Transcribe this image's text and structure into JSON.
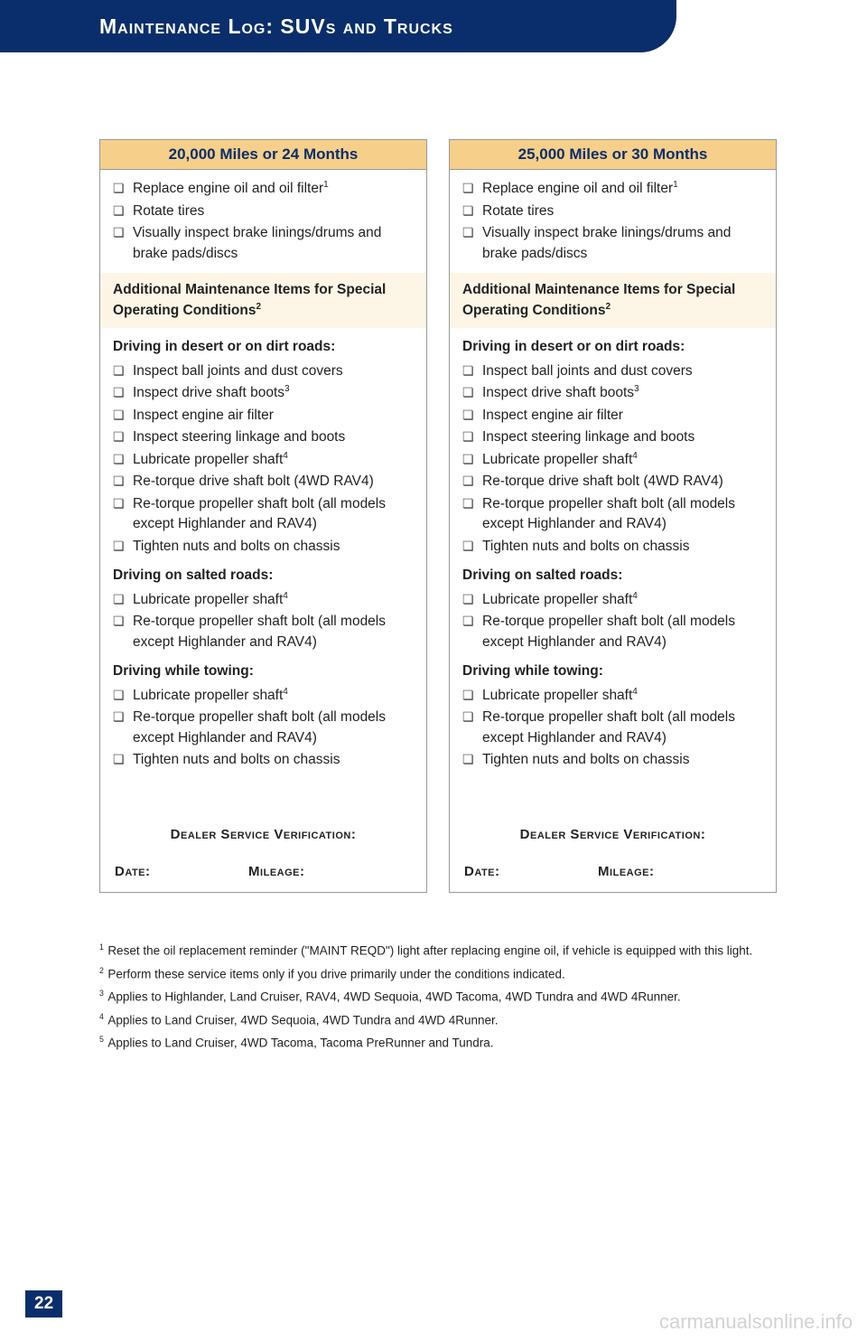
{
  "header_title": "Maintenance Log: SUVs and Trucks",
  "panels": [
    {
      "title": "20,000 Miles or 24 Months",
      "main_items": [
        {
          "text": "Replace engine oil and oil filter",
          "sup": "1"
        },
        {
          "text": "Rotate tires"
        },
        {
          "text": "Visually inspect brake linings/drums and brake pads/discs"
        }
      ],
      "special_heading": "Additional Maintenance Items for Special Operating Conditions",
      "special_sup": "2",
      "sections": [
        {
          "heading": "Driving in desert or on dirt roads:",
          "items": [
            {
              "text": "Inspect ball joints and dust covers"
            },
            {
              "text": "Inspect drive shaft boots",
              "sup": "3"
            },
            {
              "text": "Inspect engine air filter"
            },
            {
              "text": "Inspect steering linkage and boots"
            },
            {
              "text": "Lubricate propeller shaft",
              "sup": "4"
            },
            {
              "text": "Re-torque drive shaft bolt (4WD RAV4)"
            },
            {
              "text": "Re-torque propeller shaft bolt (all models except Highlander and RAV4)"
            },
            {
              "text": "Tighten nuts and bolts on chassis"
            }
          ]
        },
        {
          "heading": "Driving on salted roads:",
          "items": [
            {
              "text": "Lubricate propeller shaft",
              "sup": "4"
            },
            {
              "text": "Re-torque propeller shaft bolt (all models except Highlander and RAV4)"
            }
          ]
        },
        {
          "heading": "Driving while towing:",
          "items": [
            {
              "text": "Lubricate propeller shaft",
              "sup": "4"
            },
            {
              "text": "Re-torque propeller shaft bolt (all models except Highlander and RAV4)"
            },
            {
              "text": "Tighten nuts and bolts on chassis"
            }
          ]
        }
      ],
      "verification_label": "Dealer Service Verification:",
      "date_label": "Date:",
      "mileage_label": "Mileage:"
    },
    {
      "title": "25,000 Miles or 30 Months",
      "main_items": [
        {
          "text": "Replace engine oil and oil filter",
          "sup": "1"
        },
        {
          "text": "Rotate tires"
        },
        {
          "text": "Visually inspect brake linings/drums and brake pads/discs"
        }
      ],
      "special_heading": "Additional Maintenance Items for Special Operating Conditions",
      "special_sup": "2",
      "sections": [
        {
          "heading": "Driving in desert or on dirt roads:",
          "items": [
            {
              "text": "Inspect ball joints and dust covers"
            },
            {
              "text": "Inspect drive shaft boots",
              "sup": "3"
            },
            {
              "text": "Inspect engine air filter"
            },
            {
              "text": "Inspect steering linkage and boots"
            },
            {
              "text": "Lubricate propeller shaft",
              "sup": "4"
            },
            {
              "text": "Re-torque drive shaft bolt (4WD RAV4)"
            },
            {
              "text": "Re-torque propeller shaft bolt (all models except Highlander and RAV4)"
            },
            {
              "text": "Tighten nuts and bolts on chassis"
            }
          ]
        },
        {
          "heading": "Driving on salted roads:",
          "items": [
            {
              "text": "Lubricate propeller shaft",
              "sup": "4"
            },
            {
              "text": "Re-torque propeller shaft bolt (all models except Highlander and RAV4)"
            }
          ]
        },
        {
          "heading": "Driving while towing:",
          "items": [
            {
              "text": "Lubricate propeller shaft",
              "sup": "4"
            },
            {
              "text": "Re-torque propeller shaft bolt (all models except Highlander and RAV4)"
            },
            {
              "text": "Tighten nuts and bolts on chassis"
            }
          ]
        }
      ],
      "verification_label": "Dealer Service Verification:",
      "date_label": "Date:",
      "mileage_label": "Mileage:"
    }
  ],
  "footnotes": [
    {
      "num": "1",
      "text": "Reset the oil replacement reminder (\"MAINT REQD\") light after replacing engine oil, if vehicle is equipped with this light."
    },
    {
      "num": "2",
      "text": "Perform these service items only if you drive primarily under the conditions indicated."
    },
    {
      "num": "3",
      "text": "Applies to Highlander, Land Cruiser, RAV4, 4WD Sequoia, 4WD Tacoma, 4WD Tundra and 4WD 4Runner."
    },
    {
      "num": "4",
      "text": "Applies to Land Cruiser, 4WD Sequoia, 4WD Tundra and 4WD 4Runner."
    },
    {
      "num": "5",
      "text": "Applies to Land Cruiser, 4WD Tacoma, Tacoma PreRunner and Tundra."
    }
  ],
  "page_number": "22",
  "watermark": "carmanualsonline.info"
}
